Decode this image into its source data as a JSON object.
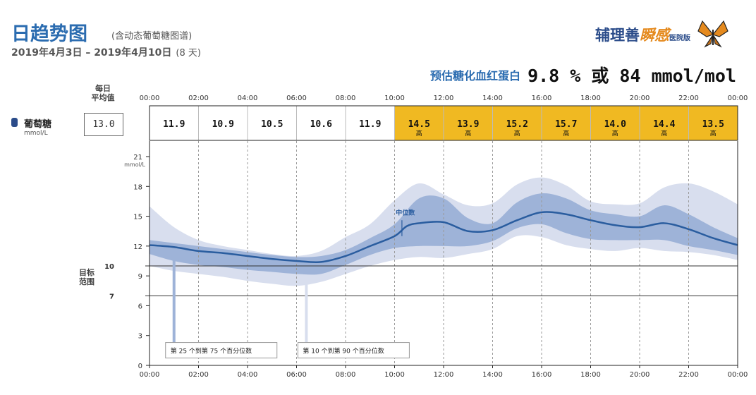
{
  "header": {
    "title": "日趋势图",
    "subtitle": "(含动态葡萄糖图谱)",
    "date_range": "2019年4月3日 – 2019年4月10日",
    "day_count": "(8 天)",
    "brand": {
      "part1": "辅理善",
      "part2": "瞬感",
      "part3": "医院版"
    },
    "hba1c_label": "预估糖化血红蛋白",
    "hba1c_value": "9.8 % 或 84 mmol/mol"
  },
  "row": {
    "daily_avg_label_1": "每日",
    "daily_avg_label_2": "平均值",
    "glucose_label": "葡萄糖",
    "glucose_unit": "mmol/L",
    "daily_avg_value": "13.0"
  },
  "target_label": {
    "line1": "目标",
    "line2": "范围"
  },
  "colors": {
    "high": "#f0b922",
    "median": "#2a5d9f",
    "iqr": "#9eb3d8",
    "p10_90": "#d8deee",
    "axis": "#333333",
    "title": "#2b6cb0"
  },
  "chart_data": {
    "type": "area",
    "x_unit": "hours",
    "ylabel": "mmol/L",
    "ylim": [
      0,
      21
    ],
    "yticks": [
      0,
      3,
      6,
      9,
      12,
      15,
      18,
      21
    ],
    "target_range": [
      7,
      10
    ],
    "x_tick_labels": [
      "00:00",
      "02:00",
      "04:00",
      "06:00",
      "08:00",
      "10:00",
      "12:00",
      "14:00",
      "16:00",
      "18:00",
      "20:00",
      "22:00",
      "00:00"
    ],
    "bins": [
      {
        "value": "11.9",
        "flag": ""
      },
      {
        "value": "10.9",
        "flag": ""
      },
      {
        "value": "10.5",
        "flag": ""
      },
      {
        "value": "10.6",
        "flag": ""
      },
      {
        "value": "11.9",
        "flag": ""
      },
      {
        "value": "14.5",
        "flag": "高"
      },
      {
        "value": "13.9",
        "flag": "高"
      },
      {
        "value": "15.2",
        "flag": "高"
      },
      {
        "value": "15.7",
        "flag": "高"
      },
      {
        "value": "14.0",
        "flag": "高"
      },
      {
        "value": "14.4",
        "flag": "高"
      },
      {
        "value": "13.5",
        "flag": "高"
      }
    ],
    "median_label": "中位数",
    "legend_iqr": "第 25 个到第 75 个百分位数",
    "legend_p10_90": "第 10 个到第 90 个百分位数",
    "series": [
      {
        "name": "中位数",
        "x": [
          0,
          1,
          2,
          3,
          4,
          5,
          6,
          7,
          8,
          9,
          10,
          10.5,
          11,
          12,
          13,
          14,
          15,
          16,
          17,
          18,
          19,
          20,
          21,
          22,
          23,
          24
        ],
        "values": [
          12.1,
          11.9,
          11.5,
          11.3,
          11.0,
          10.7,
          10.5,
          10.4,
          11.0,
          12.0,
          13.0,
          14.0,
          14.3,
          14.4,
          13.5,
          13.6,
          14.6,
          15.4,
          15.2,
          14.6,
          14.1,
          13.9,
          14.3,
          13.7,
          12.8,
          12.1
        ]
      },
      {
        "name": "第 25 个到第 75 个百分位数",
        "x": [
          0,
          1,
          2,
          3,
          4,
          5,
          6,
          7,
          8,
          9,
          10,
          11,
          12,
          13,
          14,
          15,
          16,
          17,
          18,
          19,
          20,
          21,
          22,
          23,
          24
        ],
        "upper": [
          12.6,
          12.3,
          12.0,
          11.7,
          11.4,
          11.1,
          10.9,
          11.0,
          11.6,
          12.8,
          14.2,
          16.8,
          16.8,
          14.8,
          14.3,
          16.4,
          17.3,
          16.8,
          15.6,
          15.2,
          15.0,
          16.1,
          15.2,
          13.9,
          12.8
        ],
        "lower": [
          11.2,
          10.5,
          10.1,
          9.9,
          9.6,
          9.4,
          9.2,
          9.2,
          10.1,
          11.1,
          11.8,
          12.0,
          12.0,
          12.0,
          12.5,
          13.8,
          14.2,
          13.3,
          12.7,
          12.6,
          12.6,
          12.6,
          12.0,
          11.6,
          11.1
        ]
      },
      {
        "name": "第 10 个到第 90 个百分位数",
        "x": [
          0,
          1,
          2,
          3,
          4,
          5,
          6,
          7,
          8,
          9,
          10,
          11,
          12,
          13,
          14,
          15,
          16,
          17,
          18,
          19,
          20,
          21,
          22,
          23,
          24
        ],
        "upper": [
          16.0,
          13.9,
          12.6,
          12.0,
          11.6,
          11.2,
          11.0,
          11.5,
          12.9,
          14.2,
          16.6,
          18.3,
          17.2,
          16.1,
          16.3,
          18.2,
          18.9,
          18.1,
          16.5,
          16.2,
          16.3,
          17.9,
          18.3,
          17.5,
          16.2
        ],
        "lower": [
          10.0,
          9.5,
          9.2,
          8.9,
          8.5,
          8.2,
          8.0,
          8.4,
          9.2,
          10.0,
          10.6,
          10.9,
          10.8,
          11.2,
          11.7,
          13.0,
          12.9,
          12.1,
          11.7,
          11.5,
          11.8,
          11.5,
          11.4,
          11.1,
          10.6
        ]
      }
    ]
  }
}
